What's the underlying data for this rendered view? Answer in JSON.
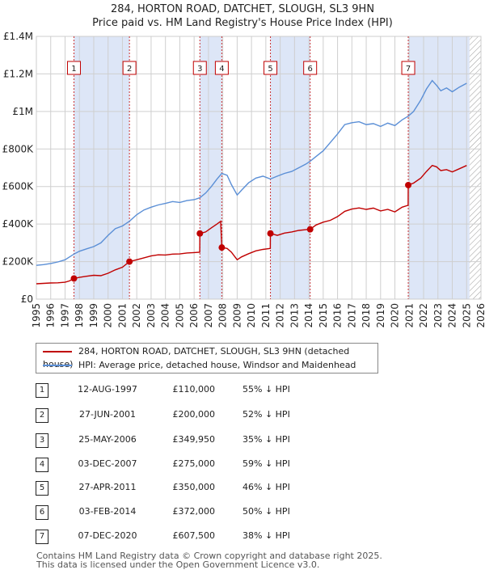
{
  "header": {
    "title": "284, HORTON ROAD, DATCHET, SLOUGH, SL3 9HN",
    "subtitle": "Price paid vs. HM Land Registry's House Price Index (HPI)"
  },
  "colors": {
    "property": "#c00000",
    "hpi": "#5b8fd6",
    "shade": "#dde6f7",
    "grid": "#cfcfcf",
    "hatch": "#999999"
  },
  "chart_data": {
    "type": "line",
    "xlim": [
      1995,
      2026
    ],
    "ylim": [
      0,
      1400000
    ],
    "x_ticks": [
      "1995",
      "1996",
      "1997",
      "1998",
      "1999",
      "2000",
      "2001",
      "2002",
      "2003",
      "2004",
      "2005",
      "2006",
      "2007",
      "2008",
      "2009",
      "2010",
      "2011",
      "2012",
      "2013",
      "2014",
      "2015",
      "2016",
      "2017",
      "2018",
      "2019",
      "2020",
      "2021",
      "2022",
      "2023",
      "2024",
      "2025",
      "2026"
    ],
    "y_ticks": [
      {
        "value": 0,
        "label": "£0"
      },
      {
        "value": 200000,
        "label": "£200K"
      },
      {
        "value": 400000,
        "label": "£400K"
      },
      {
        "value": 600000,
        "label": "£600K"
      },
      {
        "value": 800000,
        "label": "£800K"
      },
      {
        "value": 1000000,
        "label": "£1M"
      },
      {
        "value": 1200000,
        "label": "£1.2M"
      },
      {
        "value": 1400000,
        "label": "£1.4M"
      }
    ],
    "grid": true,
    "hatched_after": 2025.2,
    "shaded_ranges": [
      [
        1997.62,
        2001.49
      ],
      [
        2006.4,
        2007.93
      ],
      [
        2011.32,
        2014.09
      ],
      [
        2020.93,
        2025.2
      ]
    ],
    "series": [
      {
        "name": "284, HORTON ROAD, DATCHET, SLOUGH, SL3 9HN (detached house)",
        "color": "#c00000",
        "points": [
          [
            1995.0,
            82000
          ],
          [
            1995.5,
            84000
          ],
          [
            1996.0,
            86000
          ],
          [
            1996.5,
            87000
          ],
          [
            1997.0,
            90000
          ],
          [
            1997.3,
            97000
          ],
          [
            1997.62,
            110000
          ],
          [
            1998.0,
            116000
          ],
          [
            1998.5,
            122000
          ],
          [
            1999.0,
            127000
          ],
          [
            1999.5,
            125000
          ],
          [
            2000.0,
            138000
          ],
          [
            2000.5,
            156000
          ],
          [
            2001.0,
            170000
          ],
          [
            2001.49,
            200000
          ],
          [
            2002.0,
            210000
          ],
          [
            2002.5,
            220000
          ],
          [
            2003.0,
            230000
          ],
          [
            2003.5,
            236000
          ],
          [
            2004.0,
            235000
          ],
          [
            2004.5,
            240000
          ],
          [
            2005.0,
            241000
          ],
          [
            2005.5,
            246000
          ],
          [
            2006.0,
            248000
          ],
          [
            2006.39,
            250000
          ],
          [
            2006.4,
            349950
          ],
          [
            2006.8,
            358000
          ],
          [
            2007.2,
            380000
          ],
          [
            2007.6,
            400000
          ],
          [
            2007.85,
            415000
          ],
          [
            2007.93,
            275000
          ],
          [
            2008.3,
            270000
          ],
          [
            2008.6,
            250000
          ],
          [
            2009.0,
            210000
          ],
          [
            2009.3,
            225000
          ],
          [
            2009.8,
            242000
          ],
          [
            2010.3,
            257000
          ],
          [
            2010.8,
            265000
          ],
          [
            2011.31,
            270000
          ],
          [
            2011.32,
            350000
          ],
          [
            2011.8,
            340000
          ],
          [
            2012.3,
            352000
          ],
          [
            2012.8,
            358000
          ],
          [
            2013.3,
            366000
          ],
          [
            2013.8,
            370000
          ],
          [
            2014.09,
            372000
          ],
          [
            2014.5,
            395000
          ],
          [
            2015.0,
            410000
          ],
          [
            2015.5,
            420000
          ],
          [
            2016.0,
            440000
          ],
          [
            2016.5,
            468000
          ],
          [
            2017.0,
            480000
          ],
          [
            2017.5,
            486000
          ],
          [
            2018.0,
            478000
          ],
          [
            2018.5,
            485000
          ],
          [
            2019.0,
            470000
          ],
          [
            2019.5,
            478000
          ],
          [
            2020.0,
            465000
          ],
          [
            2020.5,
            490000
          ],
          [
            2020.92,
            500000
          ],
          [
            2020.93,
            607500
          ],
          [
            2021.3,
            618000
          ],
          [
            2021.8,
            645000
          ],
          [
            2022.2,
            680000
          ],
          [
            2022.6,
            712000
          ],
          [
            2022.9,
            705000
          ],
          [
            2023.2,
            685000
          ],
          [
            2023.6,
            690000
          ],
          [
            2024.0,
            678000
          ],
          [
            2024.5,
            695000
          ],
          [
            2025.0,
            712000
          ]
        ]
      },
      {
        "name": "HPI: Average price, detached house, Windsor and Maidenhead",
        "color": "#5b8fd6",
        "points": [
          [
            1995.0,
            180000
          ],
          [
            1995.5,
            184000
          ],
          [
            1996.0,
            190000
          ],
          [
            1996.5,
            198000
          ],
          [
            1997.0,
            210000
          ],
          [
            1997.62,
            240000
          ],
          [
            1998.0,
            255000
          ],
          [
            1998.5,
            268000
          ],
          [
            1999.0,
            280000
          ],
          [
            1999.5,
            300000
          ],
          [
            2000.0,
            340000
          ],
          [
            2000.5,
            375000
          ],
          [
            2001.0,
            390000
          ],
          [
            2001.49,
            415000
          ],
          [
            2002.0,
            450000
          ],
          [
            2002.5,
            475000
          ],
          [
            2003.0,
            490000
          ],
          [
            2003.5,
            502000
          ],
          [
            2004.0,
            510000
          ],
          [
            2004.5,
            520000
          ],
          [
            2005.0,
            515000
          ],
          [
            2005.5,
            525000
          ],
          [
            2006.0,
            530000
          ],
          [
            2006.4,
            540000
          ],
          [
            2006.8,
            565000
          ],
          [
            2007.2,
            600000
          ],
          [
            2007.6,
            640000
          ],
          [
            2007.93,
            670000
          ],
          [
            2008.3,
            660000
          ],
          [
            2008.6,
            610000
          ],
          [
            2009.0,
            555000
          ],
          [
            2009.3,
            580000
          ],
          [
            2009.8,
            620000
          ],
          [
            2010.3,
            645000
          ],
          [
            2010.8,
            655000
          ],
          [
            2011.32,
            640000
          ],
          [
            2011.8,
            655000
          ],
          [
            2012.3,
            670000
          ],
          [
            2012.8,
            680000
          ],
          [
            2013.3,
            700000
          ],
          [
            2013.8,
            720000
          ],
          [
            2014.09,
            735000
          ],
          [
            2014.5,
            760000
          ],
          [
            2015.0,
            790000
          ],
          [
            2015.5,
            835000
          ],
          [
            2016.0,
            880000
          ],
          [
            2016.5,
            930000
          ],
          [
            2017.0,
            940000
          ],
          [
            2017.5,
            945000
          ],
          [
            2018.0,
            930000
          ],
          [
            2018.5,
            935000
          ],
          [
            2019.0,
            920000
          ],
          [
            2019.5,
            938000
          ],
          [
            2020.0,
            925000
          ],
          [
            2020.5,
            955000
          ],
          [
            2020.93,
            975000
          ],
          [
            2021.3,
            1000000
          ],
          [
            2021.8,
            1060000
          ],
          [
            2022.2,
            1120000
          ],
          [
            2022.6,
            1165000
          ],
          [
            2022.9,
            1140000
          ],
          [
            2023.2,
            1110000
          ],
          [
            2023.6,
            1125000
          ],
          [
            2024.0,
            1105000
          ],
          [
            2024.5,
            1130000
          ],
          [
            2025.0,
            1150000
          ]
        ]
      }
    ],
    "sales": [
      {
        "n": "1",
        "x": 1997.62,
        "y": 110000
      },
      {
        "n": "2",
        "x": 2001.49,
        "y": 200000
      },
      {
        "n": "3",
        "x": 2006.4,
        "y": 349950
      },
      {
        "n": "4",
        "x": 2007.93,
        "y": 275000
      },
      {
        "n": "5",
        "x": 2011.32,
        "y": 350000
      },
      {
        "n": "6",
        "x": 2014.09,
        "y": 372000
      },
      {
        "n": "7",
        "x": 2020.93,
        "y": 607500
      }
    ]
  },
  "legend": {
    "property": "284, HORTON ROAD, DATCHET, SLOUGH, SL3 9HN (detached house)",
    "hpi": "HPI: Average price, detached house, Windsor and Maidenhead"
  },
  "transactions": [
    {
      "n": "1",
      "date": "12-AUG-1997",
      "price": "£110,000",
      "hpi": "55% ↓ HPI"
    },
    {
      "n": "2",
      "date": "27-JUN-2001",
      "price": "£200,000",
      "hpi": "52% ↓ HPI"
    },
    {
      "n": "3",
      "date": "25-MAY-2006",
      "price": "£349,950",
      "hpi": "35% ↓ HPI"
    },
    {
      "n": "4",
      "date": "03-DEC-2007",
      "price": "£275,000",
      "hpi": "59% ↓ HPI"
    },
    {
      "n": "5",
      "date": "27-APR-2011",
      "price": "£350,000",
      "hpi": "46% ↓ HPI"
    },
    {
      "n": "6",
      "date": "03-FEB-2014",
      "price": "£372,000",
      "hpi": "50% ↓ HPI"
    },
    {
      "n": "7",
      "date": "07-DEC-2020",
      "price": "£607,500",
      "hpi": "38% ↓ HPI"
    }
  ],
  "footer": {
    "line1": "Contains HM Land Registry data © Crown copyright and database right 2025.",
    "line2": "This data is licensed under the Open Government Licence v3.0."
  }
}
